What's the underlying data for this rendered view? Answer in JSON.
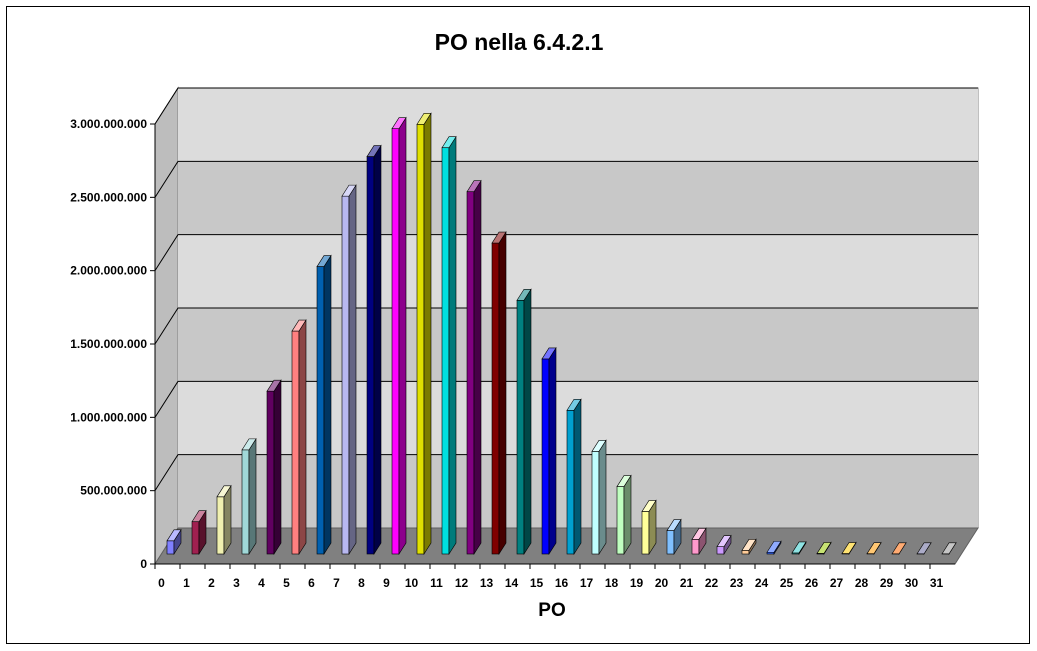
{
  "chart_data": {
    "type": "bar",
    "style": "3d-column",
    "title": "PO nella 6.4.2.1",
    "xlabel": "PO",
    "ylabel": "",
    "ylim": [
      0,
      3000000000
    ],
    "yticks": [
      "0",
      "500.000.000",
      "1.000.000.000",
      "1.500.000.000",
      "2.000.000.000",
      "2.500.000.000",
      "3.000.000.000"
    ],
    "grid": true,
    "legend": "none",
    "categories": [
      "0",
      "1",
      "2",
      "3",
      "4",
      "5",
      "6",
      "7",
      "8",
      "9",
      "10",
      "11",
      "12",
      "13",
      "14",
      "15",
      "16",
      "17",
      "18",
      "19",
      "20",
      "21",
      "22",
      "23",
      "24",
      "25",
      "26",
      "27",
      "28",
      "29",
      "30",
      "31"
    ],
    "values": [
      90000000,
      220000000,
      390000000,
      710000000,
      1110000000,
      1520000000,
      1960000000,
      2440000000,
      2710000000,
      2900000000,
      2930000000,
      2770000000,
      2470000000,
      2120000000,
      1730000000,
      1330000000,
      980000000,
      700000000,
      460000000,
      290000000,
      160000000,
      100000000,
      50000000,
      25000000,
      12000000,
      7000000,
      4000000,
      3000000,
      2000000,
      1000000,
      1000000,
      1000000
    ],
    "colors": [
      "#8080ff",
      "#a02050",
      "#f0f0b0",
      "#a0d8d8",
      "#600060",
      "#ff8080",
      "#0060b0",
      "#b8b8f0",
      "#000080",
      "#ff00ff",
      "#e0e000",
      "#00e0e0",
      "#800080",
      "#800000",
      "#008080",
      "#0000ff",
      "#00a0d0",
      "#c0ffff",
      "#c0ffc0",
      "#ffff99",
      "#80c0ff",
      "#ff99cc",
      "#cc99ff",
      "#ffcc99",
      "#3366ff",
      "#33cccc",
      "#99cc00",
      "#ffcc00",
      "#ff9900",
      "#ff6600",
      "#666699",
      "#969696"
    ]
  }
}
